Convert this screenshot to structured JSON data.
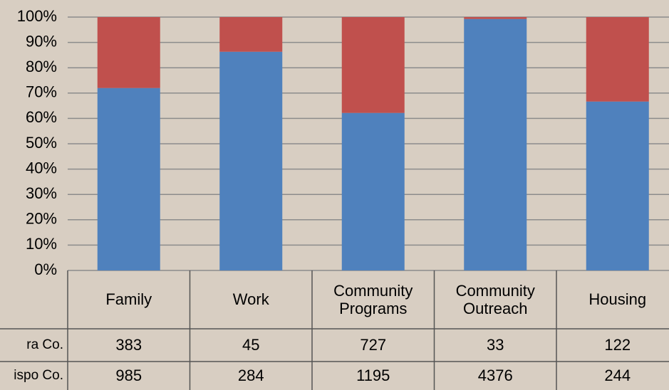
{
  "chart_data": {
    "type": "bar100",
    "categories": [
      "Family",
      "Work",
      "Community\nPrograms",
      "Community\nOutreach",
      "Housing"
    ],
    "series": [
      {
        "name": "ispo Co.",
        "color": "#4f81bd",
        "values": [
          985,
          284,
          1195,
          4376,
          244
        ]
      },
      {
        "name": "ra Co.",
        "color": "#c0504d",
        "values": [
          383,
          45,
          727,
          33,
          122
        ]
      }
    ],
    "ylim": [
      0,
      100
    ],
    "yticks": [
      {
        "value": 0,
        "label": "0%"
      },
      {
        "value": 10,
        "label": "10%"
      },
      {
        "value": 20,
        "label": "20%"
      },
      {
        "value": 30,
        "label": "30%"
      },
      {
        "value": 40,
        "label": "40%"
      },
      {
        "value": 50,
        "label": "50%"
      },
      {
        "value": 60,
        "label": "60%"
      },
      {
        "value": 70,
        "label": "70%"
      },
      {
        "value": 80,
        "label": "80%"
      },
      {
        "value": 90,
        "label": "90%"
      },
      {
        "value": 100,
        "label": "100%"
      }
    ],
    "grid": true
  }
}
